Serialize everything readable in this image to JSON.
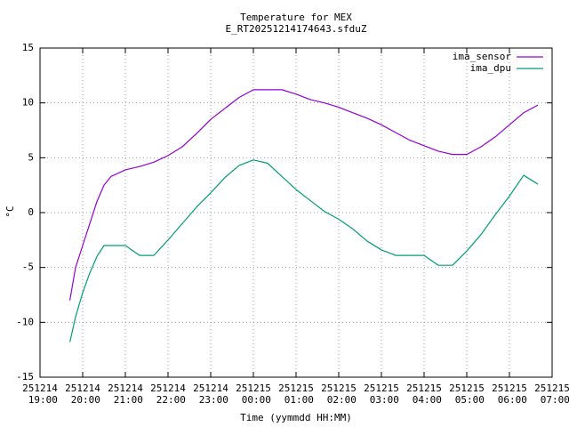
{
  "chart_data": {
    "type": "line",
    "title": "Temperature for MEX",
    "subtitle": "E_RT20251214174643.sfduZ",
    "x_label": "Time (yymmdd HH:MM)",
    "y_label": "°C",
    "x": [
      "251214 19:42",
      "251214 19:50",
      "251214 20:00",
      "251214 20:10",
      "251214 20:20",
      "251214 20:30",
      "251214 20:40",
      "251214 21:00",
      "251214 21:20",
      "251214 21:40",
      "251214 22:00",
      "251214 22:20",
      "251214 22:40",
      "251214 23:00",
      "251214 23:20",
      "251214 23:40",
      "251215 00:00",
      "251215 00:20",
      "251215 00:40",
      "251215 01:00",
      "251215 01:20",
      "251215 01:40",
      "251215 02:00",
      "251215 02:20",
      "251215 02:40",
      "251215 03:00",
      "251215 03:20",
      "251215 03:40",
      "251215 04:00",
      "251215 04:20",
      "251215 04:40",
      "251215 05:00",
      "251215 05:20",
      "251215 05:40",
      "251215 06:00",
      "251215 06:20",
      "251215 06:40"
    ],
    "series": [
      {
        "name": "ima_sensor",
        "color": "#9400d3",
        "values": [
          -8,
          -5,
          -3,
          -1,
          1,
          2.5,
          3.3,
          3.9,
          4.2,
          4.6,
          5.2,
          6,
          7.2,
          8.5,
          9.5,
          10.5,
          11.2,
          11.2,
          11.2,
          10.8,
          10.3,
          10,
          9.6,
          9.1,
          8.6,
          8,
          7.3,
          6.6,
          6.1,
          5.6,
          5.3,
          5.3,
          6,
          6.9,
          8,
          9.1,
          9.8
        ]
      },
      {
        "name": "ima_dpu",
        "color": "#009e73",
        "values": [
          -11.8,
          -9.5,
          -7.3,
          -5.5,
          -4,
          -3,
          -3,
          -3,
          -3.9,
          -3.9,
          -2.5,
          -1,
          0.5,
          1.8,
          3.2,
          4.3,
          4.8,
          4.5,
          3.3,
          2.1,
          1.1,
          0.1,
          -0.6,
          -1.5,
          -2.6,
          -3.4,
          -3.9,
          -3.9,
          -3.9,
          -4.8,
          -4.8,
          -3.5,
          -2,
          -0.2,
          1.5,
          3.4,
          2.6
        ]
      }
    ],
    "xlim": [
      "251214 19:00",
      "251215 07:00"
    ],
    "xticks": [
      "251214 19:00",
      "251214 20:00",
      "251214 21:00",
      "251214 22:00",
      "251214 23:00",
      "251215 00:00",
      "251215 01:00",
      "251215 02:00",
      "251215 03:00",
      "251215 04:00",
      "251215 05:00",
      "251215 06:00",
      "251215 07:00"
    ],
    "ylim": [
      -15,
      15
    ],
    "yticks": [
      -15,
      -10,
      -5,
      0,
      5,
      10,
      15
    ],
    "grid": true,
    "legend": "top-right"
  }
}
